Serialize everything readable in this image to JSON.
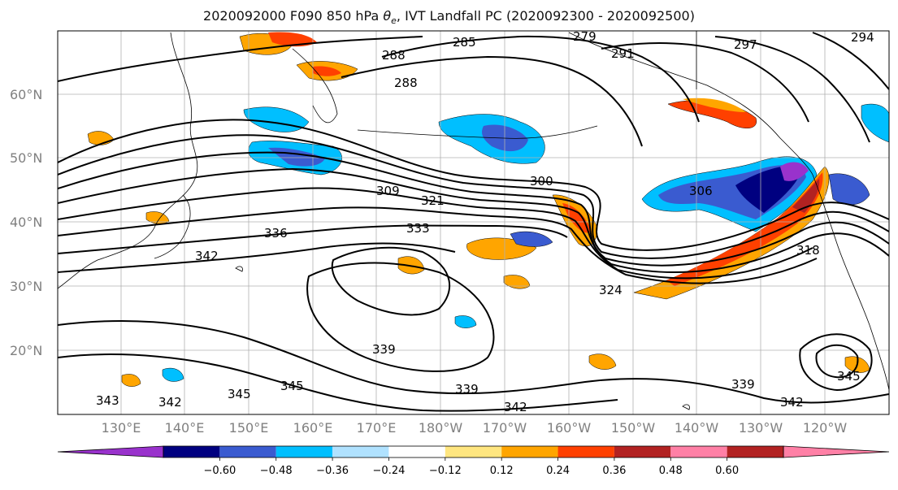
{
  "title_prefix": "2020092000 F090 850 hPa ",
  "title_theta": "θ",
  "title_theta_sub": "e",
  "title_suffix": ", IVT Landfall PC (2020092300 - 2020092500)",
  "lat_labels": [
    "60°N",
    "50°N",
    "40°N",
    "30°N",
    "20°N"
  ],
  "lon_labels": [
    "130°E",
    "140°E",
    "150°E",
    "160°E",
    "170°E",
    "180°W",
    "170°W",
    "160°W",
    "150°W",
    "140°W",
    "130°W",
    "120°W"
  ],
  "contour_labels": [
    "285",
    "288",
    "288",
    "279",
    "291",
    "297",
    "294",
    "309",
    "321",
    "300",
    "306",
    "333",
    "336",
    "342",
    "324",
    "318",
    "339",
    "345",
    "345",
    "343",
    "342",
    "339",
    "339",
    "342",
    "345",
    "342"
  ],
  "colorbar": {
    "tick_labels": [
      "−0.60",
      "−0.48",
      "−0.36",
      "−0.24",
      "−0.12",
      "0.12",
      "0.24",
      "0.36",
      "0.48",
      "0.60"
    ],
    "colors": [
      "#9932cc",
      "#000080",
      "#3a5bd0",
      "#00bfff",
      "#b0e2ff",
      "#ffffff",
      "#ffe680",
      "#ffa500",
      "#ff4000",
      "#b22222",
      "#ff80a6"
    ]
  }
}
